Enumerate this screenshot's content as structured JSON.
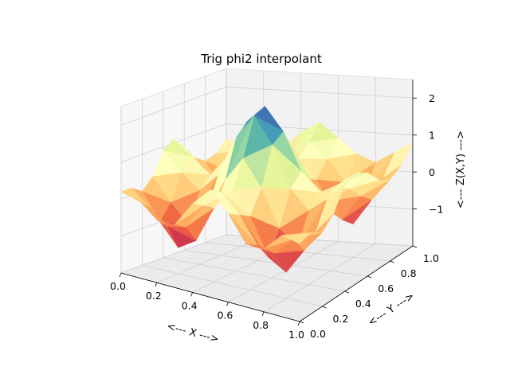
{
  "chart_data": {
    "type": "surface3d",
    "title": "Trig phi2 interpolant",
    "xlabel": "<--- X --->",
    "ylabel": "<--- Y --->",
    "zlabel": "<--- Z(X,Y) --->",
    "xlim": [
      0,
      1
    ],
    "ylim": [
      0,
      1
    ],
    "zlim": [
      -2,
      2.5
    ],
    "xticks": [
      0.0,
      0.2,
      0.4,
      0.6,
      0.8,
      1.0
    ],
    "yticks": [
      0.0,
      0.2,
      0.4,
      0.6,
      0.8,
      1.0
    ],
    "zticks": [
      -1,
      0,
      1,
      2
    ],
    "xtick_labels": [
      "0.0",
      "0.2",
      "0.4",
      "0.6",
      "0.8",
      "1.0"
    ],
    "ytick_labels": [
      "0.0",
      "0.2",
      "0.4",
      "0.6",
      "0.8",
      "1.0"
    ],
    "ztick_labels": [
      "−1",
      "0",
      "1",
      "2"
    ],
    "colormap": "Spectral",
    "grid": true,
    "surface": {
      "x": [
        0.0,
        0.1,
        0.2,
        0.3,
        0.4,
        0.5,
        0.6,
        0.7,
        0.8,
        0.9,
        1.0
      ],
      "y": [
        0.0,
        0.1,
        0.2,
        0.3,
        0.4,
        0.5,
        0.6,
        0.7,
        0.8,
        0.9,
        1.0
      ],
      "z_rows_by_y": [
        [
          0.2,
          0.1,
          -0.3,
          -0.3,
          0.4,
          0.9,
          0.4,
          -0.3,
          -0.3,
          0.2,
          0.1
        ],
        [
          0.2,
          -0.2,
          -0.6,
          -0.5,
          0.2,
          0.7,
          0.2,
          -0.5,
          -0.6,
          -0.1,
          0.2
        ],
        [
          0.0,
          -0.7,
          -1.3,
          -1.0,
          0.0,
          0.6,
          0.0,
          -1.0,
          -1.3,
          -0.6,
          0.0
        ],
        [
          0.3,
          -0.3,
          -0.8,
          -0.4,
          0.6,
          1.3,
          0.6,
          -0.4,
          -0.8,
          -0.3,
          0.3
        ],
        [
          0.9,
          0.4,
          0.0,
          0.5,
          1.6,
          2.3,
          1.6,
          0.5,
          0.0,
          0.4,
          0.9
        ],
        [
          1.1,
          0.7,
          0.3,
          0.9,
          1.9,
          2.4,
          1.8,
          0.8,
          0.3,
          0.6,
          1.0
        ],
        [
          0.8,
          0.3,
          -0.1,
          0.4,
          1.2,
          1.6,
          1.1,
          0.3,
          -0.1,
          0.3,
          0.8
        ],
        [
          0.4,
          -0.2,
          -0.8,
          -0.5,
          0.3,
          0.7,
          0.2,
          -0.5,
          -0.8,
          -0.1,
          0.4
        ],
        [
          0.2,
          -0.6,
          -1.2,
          -0.9,
          -0.1,
          0.5,
          0.0,
          -0.8,
          -1.1,
          -0.4,
          0.2
        ],
        [
          0.3,
          -0.2,
          -0.6,
          -0.3,
          0.3,
          0.8,
          0.4,
          -0.2,
          -0.5,
          0.0,
          0.4
        ],
        [
          0.6,
          0.3,
          0.1,
          0.4,
          0.9,
          1.2,
          0.8,
          0.4,
          0.2,
          0.5,
          0.8
        ]
      ]
    }
  }
}
